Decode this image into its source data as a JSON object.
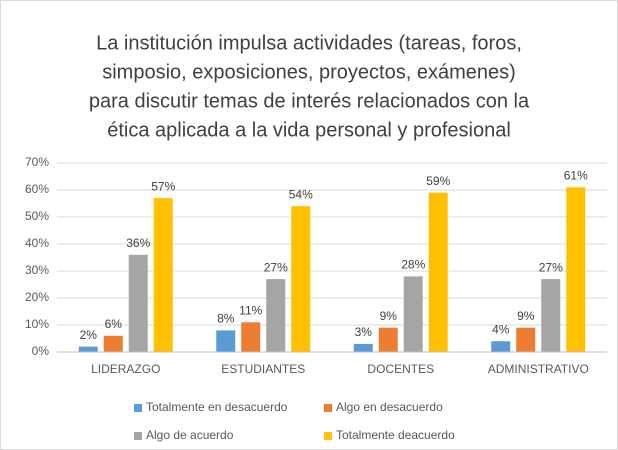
{
  "chart_data": {
    "type": "bar",
    "title": [
      "La institución impulsa actividades (tareas, foros,",
      "simposio, exposiciones, proyectos, exámenes)",
      "para discutir temas de interés relacionados con la",
      "ética aplicada a la vida personal y profesional"
    ],
    "categories": [
      "LIDERAZGO",
      "ESTUDIANTES",
      "DOCENTES",
      "ADMINISTRATIVO"
    ],
    "series": [
      {
        "name": "Totalmente en desacuerdo",
        "color": "#5b9bd5",
        "values": [
          2,
          8,
          3,
          4
        ],
        "value_labels": [
          "2%",
          "8%",
          "3%",
          "4%"
        ]
      },
      {
        "name": "Algo en desacuerdo",
        "color": "#ed7d31",
        "values": [
          6,
          11,
          9,
          9
        ],
        "value_labels": [
          "6%",
          "11%",
          "9%",
          "9%"
        ]
      },
      {
        "name": "Algo de acuerdo",
        "color": "#a5a5a5",
        "values": [
          36,
          27,
          28,
          27
        ],
        "value_labels": [
          "36%",
          "27%",
          "28%",
          "27%"
        ]
      },
      {
        "name": "Totalmente deacuerdo",
        "color": "#ffc000",
        "values": [
          57,
          54,
          59,
          61
        ],
        "value_labels": [
          "57%",
          "54%",
          "59%",
          "61%"
        ]
      }
    ],
    "ylim": [
      0,
      70
    ],
    "yticks": [
      {
        "value": 0,
        "label": "0%"
      },
      {
        "value": 10,
        "label": "10%"
      },
      {
        "value": 20,
        "label": "20%"
      },
      {
        "value": 30,
        "label": "30%"
      },
      {
        "value": 40,
        "label": "40%"
      },
      {
        "value": 50,
        "label": "50%"
      },
      {
        "value": 60,
        "label": "60%"
      },
      {
        "value": 70,
        "label": "70%"
      }
    ],
    "grid": true,
    "legend": "bottom"
  }
}
